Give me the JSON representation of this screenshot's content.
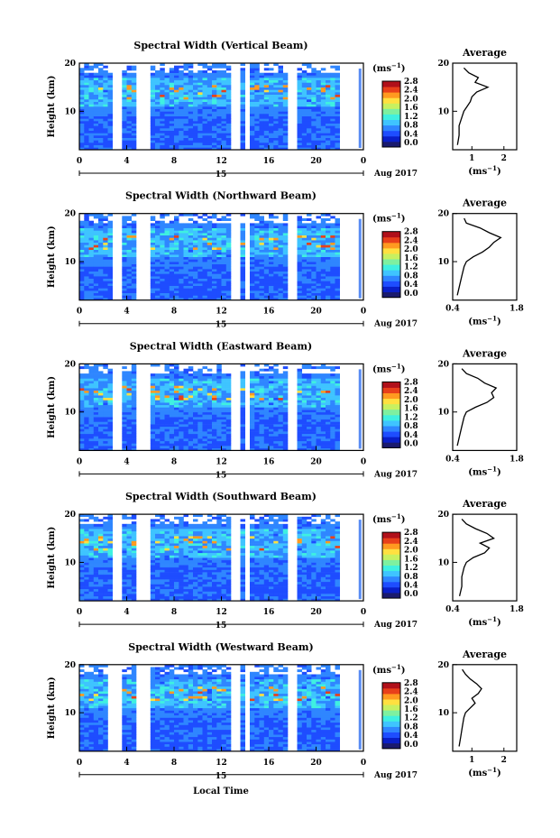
{
  "figure": {
    "date_label": "Aug 2017",
    "day_label": "15",
    "xlabel": "Local Time",
    "ylabel": "Height (km)",
    "colorbar_unit": "(ms",
    "colorbar_unit_sup": "−1",
    "colorbar_unit_close": ")",
    "avg_title": "Average",
    "avg_xlabel": "(ms",
    "avg_xlabel_close": ")"
  },
  "colors": {
    "colormap": [
      "#1a1a6e",
      "#0a1fc8",
      "#1e4dff",
      "#2f86ff",
      "#3fc4ff",
      "#3ff0e0",
      "#7ef0a0",
      "#c8f060",
      "#ffe040",
      "#ff9a20",
      "#e8401a",
      "#b0101a"
    ],
    "profile_line": "#000000"
  },
  "chart_data": [
    {
      "type": "heatmap",
      "title": "Spectral Width (Vertical Beam)",
      "x_ticks": [
        "0",
        "4",
        "8",
        "12",
        "16",
        "20",
        "0"
      ],
      "x_range": [
        0,
        24
      ],
      "y_ticks": [
        "10",
        "20"
      ],
      "y_range": [
        2,
        20
      ],
      "colorbar_ticks": [
        "0.0",
        "0.4",
        "0.8",
        "1.2",
        "1.6",
        "2.0",
        "2.4",
        "2.8"
      ],
      "colorbar_range": [
        0,
        3.0
      ],
      "data_gaps_hours": [
        [
          2.9,
          3.5
        ],
        [
          5.0,
          6.0
        ],
        [
          13.0,
          13.5
        ],
        [
          14.0,
          14.4
        ],
        [
          17.8,
          18.3
        ],
        [
          22.2,
          23.4
        ]
      ],
      "profile": {
        "title": "Average",
        "x_ticks": [
          "1",
          "2"
        ],
        "x_range": [
          0.4,
          2.4
        ],
        "y_ticks": [
          "10",
          "20"
        ],
        "y_range": [
          2,
          20
        ],
        "height_km": [
          3,
          5,
          7,
          9,
          10,
          11,
          12,
          13,
          14,
          15,
          16,
          17,
          18,
          19
        ],
        "spectral_width": [
          0.55,
          0.6,
          0.6,
          0.7,
          0.75,
          0.85,
          0.95,
          1.0,
          1.15,
          1.5,
          1.1,
          1.2,
          0.9,
          0.75
        ]
      }
    },
    {
      "type": "heatmap",
      "title": "Spectral Width (Northward Beam)",
      "x_ticks": [
        "0",
        "4",
        "8",
        "12",
        "16",
        "20",
        "0"
      ],
      "x_range": [
        0,
        24
      ],
      "y_ticks": [
        "10",
        "20"
      ],
      "y_range": [
        2,
        20
      ],
      "colorbar_ticks": [
        "0.0",
        "0.4",
        "0.8",
        "1.2",
        "1.6",
        "2.0",
        "2.4",
        "2.8"
      ],
      "colorbar_range": [
        0,
        3.0
      ],
      "data_gaps_hours": [
        [
          2.7,
          3.4
        ],
        [
          5.0,
          6.0
        ],
        [
          13.0,
          13.5
        ],
        [
          14.0,
          14.4
        ],
        [
          17.8,
          18.3
        ],
        [
          22.2,
          23.4
        ]
      ],
      "profile": {
        "title": "Average",
        "x_ticks": [
          "0.4",
          "1.8"
        ],
        "x_range": [
          0.4,
          1.8
        ],
        "y_ticks": [
          "10",
          "20"
        ],
        "y_range": [
          2,
          20
        ],
        "height_km": [
          3,
          5,
          7,
          9,
          10,
          11,
          12,
          13,
          14,
          15,
          16,
          17,
          18,
          19
        ],
        "spectral_width": [
          0.5,
          0.55,
          0.6,
          0.65,
          0.7,
          0.85,
          1.05,
          1.2,
          1.3,
          1.45,
          1.2,
          1.0,
          0.7,
          0.65
        ]
      }
    },
    {
      "type": "heatmap",
      "title": "Spectral Width (Eastward Beam)",
      "x_ticks": [
        "0",
        "4",
        "8",
        "12",
        "16",
        "20",
        "0"
      ],
      "x_range": [
        0,
        24
      ],
      "y_ticks": [
        "10",
        "20"
      ],
      "y_range": [
        2,
        20
      ],
      "colorbar_ticks": [
        "0.0",
        "0.4",
        "0.8",
        "1.2",
        "1.6",
        "2.0",
        "2.4",
        "2.8"
      ],
      "colorbar_range": [
        0,
        3.0
      ],
      "data_gaps_hours": [
        [
          2.7,
          3.4
        ],
        [
          5.0,
          6.0
        ],
        [
          13.0,
          13.5
        ],
        [
          14.0,
          14.4
        ],
        [
          17.8,
          18.3
        ],
        [
          22.2,
          23.4
        ]
      ],
      "profile": {
        "title": "Average",
        "x_ticks": [
          "0.4",
          "1.8"
        ],
        "x_range": [
          0.4,
          1.8
        ],
        "y_ticks": [
          "10",
          "20"
        ],
        "y_range": [
          2,
          20
        ],
        "height_km": [
          3,
          5,
          7,
          9,
          10,
          11,
          12,
          13,
          14,
          15,
          16,
          17,
          18,
          19
        ],
        "spectral_width": [
          0.5,
          0.55,
          0.6,
          0.65,
          0.7,
          0.9,
          1.15,
          1.3,
          1.25,
          1.35,
          1.1,
          0.95,
          0.7,
          0.6
        ]
      }
    },
    {
      "type": "heatmap",
      "title": "Spectral Width (Southward Beam)",
      "x_ticks": [
        "0",
        "4",
        "8",
        "12",
        "16",
        "20",
        "0"
      ],
      "x_range": [
        0,
        24
      ],
      "y_ticks": [
        "10",
        "20"
      ],
      "y_range": [
        2,
        20
      ],
      "colorbar_ticks": [
        "0.0",
        "0.4",
        "0.8",
        "1.2",
        "1.6",
        "2.0",
        "2.4",
        "2.8"
      ],
      "colorbar_range": [
        0,
        3.0
      ],
      "data_gaps_hours": [
        [
          2.7,
          3.4
        ],
        [
          5.0,
          6.0
        ],
        [
          13.0,
          13.5
        ],
        [
          14.0,
          14.4
        ],
        [
          17.8,
          18.3
        ],
        [
          22.2,
          23.4
        ]
      ],
      "profile": {
        "title": "Average",
        "x_ticks": [
          "0.4",
          "1.8"
        ],
        "x_range": [
          0.4,
          1.8
        ],
        "y_ticks": [
          "10",
          "20"
        ],
        "y_range": [
          2,
          20
        ],
        "height_km": [
          3,
          5,
          7,
          9,
          10,
          11,
          12,
          13,
          14,
          15,
          16,
          17,
          18,
          19
        ],
        "spectral_width": [
          0.55,
          0.6,
          0.6,
          0.65,
          0.7,
          0.85,
          1.1,
          1.2,
          1.0,
          1.3,
          1.15,
          0.9,
          0.7,
          0.6
        ]
      }
    },
    {
      "type": "heatmap",
      "title": "Spectral Width (Westward Beam)",
      "x_ticks": [
        "0",
        "4",
        "8",
        "12",
        "16",
        "20",
        "0"
      ],
      "x_range": [
        0,
        24
      ],
      "y_ticks": [
        "10",
        "20"
      ],
      "y_range": [
        2,
        20
      ],
      "colorbar_ticks": [
        "0.0",
        "0.4",
        "0.8",
        "1.2",
        "1.6",
        "2.0",
        "2.4",
        "2.8"
      ],
      "colorbar_range": [
        0,
        3.0
      ],
      "data_gaps_hours": [
        [
          2.2,
          3.4
        ],
        [
          5.0,
          6.0
        ],
        [
          13.0,
          13.5
        ],
        [
          14.0,
          14.4
        ],
        [
          17.8,
          18.3
        ],
        [
          22.2,
          23.4
        ]
      ],
      "profile": {
        "title": "Average",
        "x_ticks": [
          "1",
          "2"
        ],
        "x_range": [
          0.4,
          2.4
        ],
        "y_ticks": [
          "10",
          "20"
        ],
        "y_range": [
          2,
          20
        ],
        "height_km": [
          3,
          5,
          7,
          9,
          10,
          11,
          12,
          13,
          14,
          15,
          16,
          17,
          18,
          19
        ],
        "spectral_width": [
          0.6,
          0.65,
          0.7,
          0.75,
          0.8,
          0.95,
          1.1,
          1.0,
          1.2,
          1.3,
          1.15,
          0.95,
          0.8,
          0.7
        ]
      }
    }
  ]
}
